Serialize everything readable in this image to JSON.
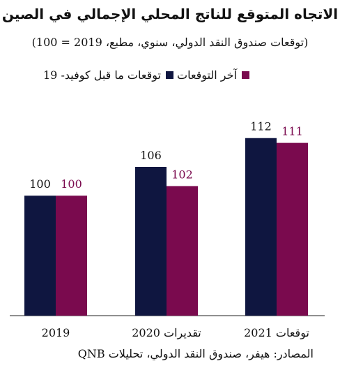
{
  "title": "الاتجاه المتوقع للناتج المحلي الإجمالي في الصين",
  "subtitle": "(توقعات صندوق النقد الدولي، سنوي، مطبع، 2019 = 100)",
  "source": "المصادر: هيفر، صندوق النقد الدولي، تحليلات QNB",
  "colors": {
    "pre_covid": "#0f1640",
    "latest": "#7a0a4e"
  },
  "chart_data": {
    "type": "bar",
    "categories": [
      "2019",
      "تقديرات 2020",
      "توقعات 2021"
    ],
    "series": [
      {
        "name": "توقعات ما قبل كوفيد- 19",
        "values": [
          100,
          106,
          112
        ]
      },
      {
        "name": "آخر التوقعات",
        "values": [
          100,
          102,
          111
        ]
      }
    ],
    "ylim": [
      75,
      114
    ]
  }
}
